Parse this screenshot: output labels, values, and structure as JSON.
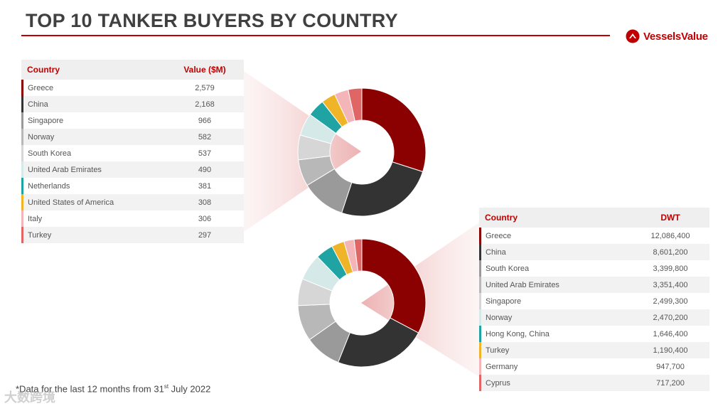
{
  "header": {
    "title": "TOP 10 TANKER BUYERS BY COUNTRY"
  },
  "logo": {
    "text": "VesselsValue",
    "icon": "vesselsvalue-logo-icon",
    "color": "#c00000"
  },
  "table_value": {
    "col1": "Country",
    "col2": "Value ($M)",
    "rows": [
      {
        "country": "Greece",
        "value": "2,579"
      },
      {
        "country": "China",
        "value": "2,168"
      },
      {
        "country": "Singapore",
        "value": "966"
      },
      {
        "country": "Norway",
        "value": "582"
      },
      {
        "country": "South Korea",
        "value": "537"
      },
      {
        "country": "United Arab Emirates",
        "value": "490"
      },
      {
        "country": "Netherlands",
        "value": "381"
      },
      {
        "country": "United States of America",
        "value": "308"
      },
      {
        "country": "Italy",
        "value": "306"
      },
      {
        "country": "Turkey",
        "value": "297"
      }
    ]
  },
  "table_dwt": {
    "col1": "Country",
    "col2": "DWT",
    "rows": [
      {
        "country": "Greece",
        "value": "12,086,400"
      },
      {
        "country": "China",
        "value": "8,601,200"
      },
      {
        "country": "South Korea",
        "value": "3,399,800"
      },
      {
        "country": "United Arab Emirates",
        "value": "3,351,400"
      },
      {
        "country": "Singapore",
        "value": "2,499,300"
      },
      {
        "country": "Norway",
        "value": "2,470,200"
      },
      {
        "country": "Hong Kong, China",
        "value": "1,646,400"
      },
      {
        "country": "Turkey",
        "value": "1,190,400"
      },
      {
        "country": "Germany",
        "value": "947,700"
      },
      {
        "country": "Cyprus",
        "value": "717,200"
      }
    ]
  },
  "colors": [
    "#8b0000",
    "#333333",
    "#9a9a9a",
    "#b8b8b8",
    "#d6d6d6",
    "#d4e9e8",
    "#1fa3a3",
    "#f0b429",
    "#f4b5b8",
    "#e06666"
  ],
  "chart_data": [
    {
      "type": "pie",
      "style": "donut",
      "title": "",
      "categories": [
        "Greece",
        "China",
        "Singapore",
        "Norway",
        "South Korea",
        "United Arab Emirates",
        "Netherlands",
        "United States of America",
        "Italy",
        "Turkey"
      ],
      "values": [
        2579,
        2168,
        966,
        582,
        537,
        490,
        381,
        308,
        306,
        297
      ]
    },
    {
      "type": "pie",
      "style": "donut",
      "title": "",
      "categories": [
        "Greece",
        "China",
        "South Korea",
        "United Arab Emirates",
        "Singapore",
        "Norway",
        "Hong Kong, China",
        "Turkey",
        "Germany",
        "Cyprus"
      ],
      "values": [
        12086400,
        8601200,
        3399800,
        3351400,
        2499300,
        2470200,
        1646400,
        1190400,
        947700,
        717200
      ]
    }
  ],
  "footnote": {
    "text": "*Data for the last 12 months from 31",
    "sup": "st",
    "tail": " July 2022"
  },
  "watermark": "大数跨境"
}
